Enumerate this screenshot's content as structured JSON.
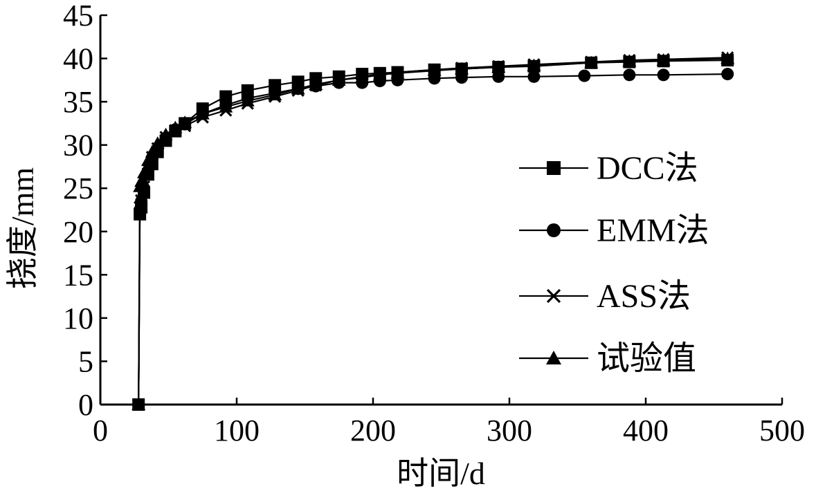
{
  "chart_data": {
    "type": "line",
    "title": "",
    "xlabel": "时间/d",
    "ylabel": "挠度/mm",
    "xlim": [
      0,
      500
    ],
    "ylim": [
      0,
      45
    ],
    "xticks": [
      0,
      100,
      200,
      300,
      400,
      500
    ],
    "yticks": [
      0,
      5,
      10,
      15,
      20,
      25,
      30,
      35,
      40,
      45
    ],
    "grid": false,
    "legend_position": "right",
    "series": [
      {
        "name": "DCC法",
        "marker": "square",
        "color": "#000000",
        "x": [
          28,
          29,
          30,
          32,
          35,
          38,
          42,
          48,
          55,
          62,
          75,
          92,
          108,
          128,
          145,
          158,
          175,
          192,
          205,
          218,
          245,
          265,
          292,
          318,
          360,
          388,
          413,
          460
        ],
        "y": [
          0,
          22,
          22.8,
          24.5,
          26.6,
          27.8,
          29.2,
          30.5,
          31.6,
          32.5,
          34.2,
          35.6,
          36.3,
          36.9,
          37.3,
          37.7,
          37.9,
          38.2,
          38.3,
          38.4,
          38.7,
          38.8,
          39.0,
          39.1,
          39.5,
          39.6,
          39.7,
          39.8
        ]
      },
      {
        "name": "EMM法",
        "marker": "circle",
        "color": "#000000",
        "x": [
          28,
          29,
          30,
          32,
          35,
          38,
          42,
          48,
          55,
          62,
          75,
          92,
          108,
          128,
          145,
          158,
          175,
          192,
          205,
          218,
          245,
          265,
          292,
          318,
          355,
          388,
          413,
          460
        ],
        "y": [
          0,
          22.5,
          23.5,
          25.0,
          27.0,
          28.5,
          29.5,
          30.8,
          31.8,
          32.4,
          33.6,
          34.6,
          35.4,
          36.0,
          36.5,
          36.8,
          37.2,
          37.2,
          37.4,
          37.5,
          37.7,
          37.8,
          37.9,
          37.9,
          38.0,
          38.1,
          38.1,
          38.2
        ]
      },
      {
        "name": "ASS法",
        "marker": "x",
        "color": "#000000",
        "x": [
          28,
          29,
          30,
          32,
          35,
          38,
          42,
          48,
          55,
          62,
          75,
          92,
          108,
          128,
          145,
          158,
          175,
          192,
          205,
          218,
          245,
          265,
          292,
          318,
          360,
          388,
          413,
          460
        ],
        "y": [
          0,
          22.8,
          23.6,
          25.2,
          27.2,
          28.6,
          29.6,
          30.9,
          31.7,
          32.2,
          33.2,
          34.0,
          34.8,
          35.6,
          36.3,
          36.9,
          37.5,
          37.9,
          38.2,
          38.4,
          38.7,
          38.9,
          39.1,
          39.3,
          39.6,
          39.8,
          39.9,
          40.1
        ]
      },
      {
        "name": "试验值",
        "marker": "triangle",
        "color": "#000000",
        "x": [
          28,
          29,
          30,
          32,
          35,
          38,
          42,
          48,
          55,
          62,
          75,
          92,
          108,
          128,
          145,
          158,
          175,
          192,
          205,
          218,
          245,
          265,
          292,
          318,
          360,
          388,
          413,
          460
        ],
        "y": [
          0,
          25.2,
          25.8,
          26.8,
          28.2,
          29.2,
          30.2,
          31.2,
          32.0,
          32.6,
          33.6,
          34.4,
          35.1,
          35.8,
          36.5,
          37.0,
          37.5,
          37.8,
          38.1,
          38.3,
          38.6,
          38.8,
          39.0,
          39.2,
          39.5,
          39.7,
          39.8,
          40.0
        ]
      }
    ]
  }
}
